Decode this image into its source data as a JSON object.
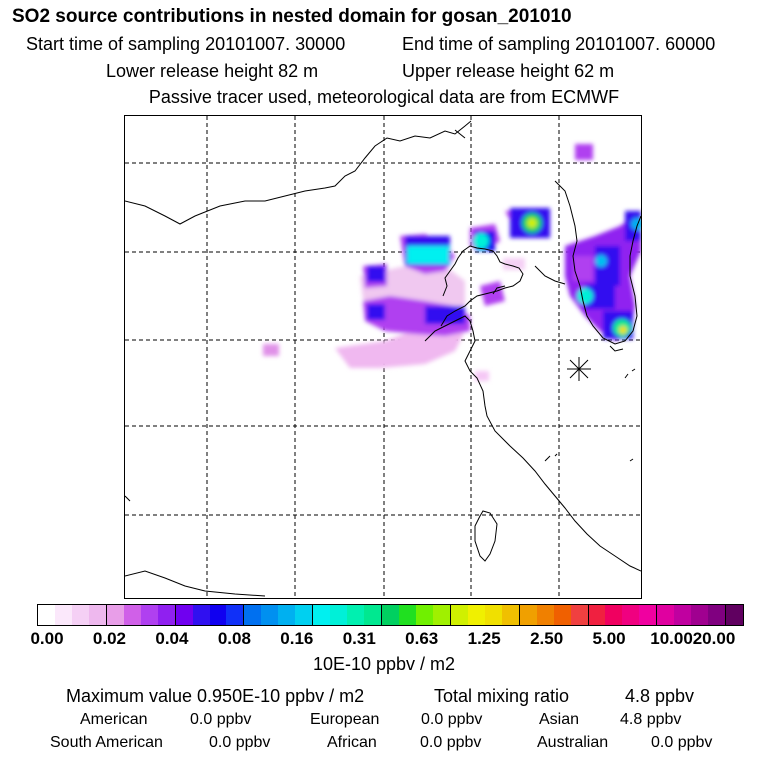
{
  "header": {
    "title": "SO2 source contributions in nested domain for gosan_201010",
    "start_label": "Start time of sampling 20101007. 30000",
    "end_label": "End time of sampling 20101007. 60000",
    "lower_height": "Lower release height   82 m",
    "upper_height": "Upper release height   62 m",
    "tracer_note": "Passive tracer used, meteorological data are from ECMWF"
  },
  "colorbar": {
    "ticks": [
      "0.00",
      "0.02",
      "0.04",
      "0.08",
      "0.16",
      "0.31",
      "0.63",
      "1.25",
      "2.50",
      "5.00",
      "10.00",
      "20.00"
    ],
    "unit": "10E-10 ppbv / m2",
    "colors": [
      "#ffffff",
      "#fbe8fb",
      "#f5d0f5",
      "#eeb8ee",
      "#e89ee8",
      "#d060e8",
      "#b040f0",
      "#9020f0",
      "#7000f0",
      "#3010f0",
      "#1000f0",
      "#1030f8",
      "#0070f0",
      "#0090f0",
      "#00b0f0",
      "#00d0f0",
      "#00f0f0",
      "#00f0d8",
      "#00f0b0",
      "#00e890",
      "#00d060",
      "#20e020",
      "#70f000",
      "#a0f000",
      "#d0f000",
      "#f0f000",
      "#f0e000",
      "#f0c000",
      "#f0a000",
      "#f08000",
      "#f06000",
      "#f04040",
      "#f02040",
      "#f00060",
      "#f00080",
      "#f000a0",
      "#e000a0",
      "#c000a0",
      "#a00090",
      "#800080",
      "#600060"
    ]
  },
  "summary": {
    "max_value": "Maximum value  0.950E-10 ppbv / m2",
    "total_label": "Total mixing ratio",
    "total_value": "4.8 ppbv",
    "regions": [
      {
        "name": "American",
        "value": "0.0 ppbv"
      },
      {
        "name": "European",
        "value": "0.0 ppbv"
      },
      {
        "name": "Asian",
        "value": "4.8 ppbv"
      },
      {
        "name": "South American",
        "value": "0.0 ppbv"
      },
      {
        "name": "African",
        "value": "0.0 ppbv"
      },
      {
        "name": "Australian",
        "value": "0.0 ppbv"
      }
    ]
  }
}
